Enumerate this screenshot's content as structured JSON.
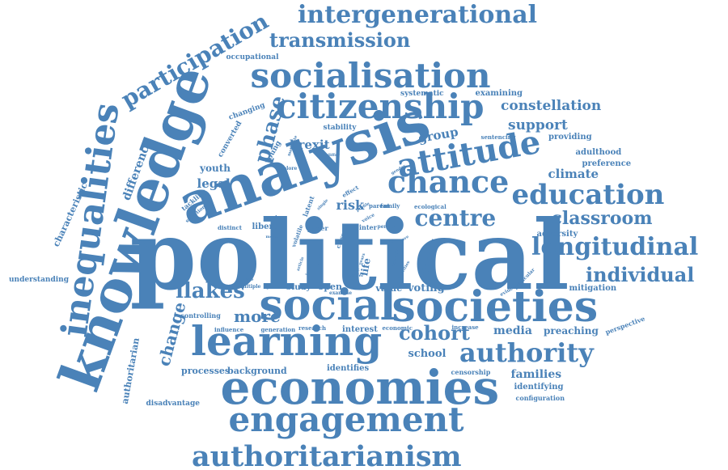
{
  "color": "#4a82b8",
  "words": [
    {
      "text": "political",
      "weight": 100
    },
    {
      "text": "analysis",
      "weight": 70
    },
    {
      "text": "knowledge",
      "weight": 62
    },
    {
      "text": "economies",
      "weight": 56
    },
    {
      "text": "social",
      "weight": 48
    },
    {
      "text": "societies",
      "weight": 48
    },
    {
      "text": "learning",
      "weight": 50
    },
    {
      "text": "inequalities",
      "weight": 45
    },
    {
      "text": "engagement",
      "weight": 42
    },
    {
      "text": "citizenship",
      "weight": 40
    },
    {
      "text": "socialisation",
      "weight": 40
    },
    {
      "text": "attitude",
      "weight": 37
    },
    {
      "text": "chance",
      "weight": 34
    },
    {
      "text": "education",
      "weight": 33
    },
    {
      "text": "authoritarianism",
      "weight": 33
    },
    {
      "text": "longitudinal",
      "weight": 30
    },
    {
      "text": "authority",
      "weight": 30
    },
    {
      "text": "intergenerational",
      "weight": 28
    },
    {
      "text": "participation",
      "weight": 26
    },
    {
      "text": "centre",
      "weight": 26
    },
    {
      "text": "phase",
      "weight": 25
    },
    {
      "text": "llakes",
      "weight": 25
    },
    {
      "text": "transmission",
      "weight": 24
    },
    {
      "text": "individual",
      "weight": 23
    },
    {
      "text": "cohort",
      "weight": 23
    },
    {
      "text": "classroom",
      "weight": 21
    },
    {
      "text": "change",
      "weight": 20
    },
    {
      "text": "more",
      "weight": 20
    },
    {
      "text": "constellation",
      "weight": 16
    },
    {
      "text": "support",
      "weight": 16
    },
    {
      "text": "difference",
      "weight": 14
    },
    {
      "text": "brexit",
      "weight": 14
    },
    {
      "text": "group",
      "weight": 14
    },
    {
      "text": "legal",
      "weight": 14
    },
    {
      "text": "risk",
      "weight": 14
    },
    {
      "text": "climate",
      "weight": 14
    },
    {
      "text": "school",
      "weight": 13
    },
    {
      "text": "families",
      "weight": 13
    },
    {
      "text": "media",
      "weight": 13
    },
    {
      "text": "preaching",
      "weight": 12
    },
    {
      "text": "voting",
      "weight": 12
    },
    {
      "text": "youth",
      "weight": 11
    },
    {
      "text": "characteristic",
      "weight": 11
    },
    {
      "text": "authoritarian",
      "weight": 10
    },
    {
      "text": "processes",
      "weight": 11
    },
    {
      "text": "background",
      "weight": 11
    },
    {
      "text": "identifies",
      "weight": 10
    },
    {
      "text": "identifying",
      "weight": 10
    },
    {
      "text": "examining",
      "weight": 10
    },
    {
      "text": "adulthood",
      "weight": 10
    },
    {
      "text": "preference",
      "weight": 10
    },
    {
      "text": "providing",
      "weight": 10
    },
    {
      "text": "adversity",
      "weight": 10
    },
    {
      "text": "mitigation",
      "weight": 10
    },
    {
      "text": "open",
      "weight": 10
    },
    {
      "text": "value",
      "weight": 10
    },
    {
      "text": "liberal",
      "weight": 10
    },
    {
      "text": "study",
      "weight": 10
    },
    {
      "text": "interest",
      "weight": 10
    },
    {
      "text": "factor",
      "weight": 10
    },
    {
      "text": "life",
      "weight": 10
    },
    {
      "text": "changing",
      "weight": 9
    },
    {
      "text": "converted",
      "weight": 9
    },
    {
      "text": "young",
      "weight": 9
    },
    {
      "text": "systematic",
      "weight": 9
    },
    {
      "text": "stability",
      "weight": 9
    },
    {
      "text": "occupational",
      "weight": 8
    },
    {
      "text": "understanding",
      "weight": 9
    },
    {
      "text": "disadvantage",
      "weight": 9
    },
    {
      "text": "configuration",
      "weight": 8
    },
    {
      "text": "censorship",
      "weight": 8
    },
    {
      "text": "perspective",
      "weight": 8
    },
    {
      "text": "controlling",
      "weight": 8
    },
    {
      "text": "influence",
      "weight": 7
    },
    {
      "text": "generation",
      "weight": 7
    },
    {
      "text": "research",
      "weight": 7
    },
    {
      "text": "economic",
      "weight": 7
    },
    {
      "text": "increase",
      "weight": 7
    },
    {
      "text": "tackling",
      "weight": 8
    },
    {
      "text": "sentencing",
      "weight": 7
    },
    {
      "text": "paper",
      "weight": 8
    },
    {
      "text": "inter",
      "weight": 8
    },
    {
      "text": "acc",
      "weight": 8
    },
    {
      "text": "parent",
      "weight": 7
    },
    {
      "text": "family",
      "weight": 7
    },
    {
      "text": "ecological",
      "weight": 7
    },
    {
      "text": "latent",
      "weight": 8
    },
    {
      "text": "volatile",
      "weight": 7
    },
    {
      "text": "class",
      "weight": 7
    },
    {
      "text": "effect",
      "weight": 7
    },
    {
      "text": "distinct",
      "weight": 7
    },
    {
      "text": "psycho",
      "weight": 6
    },
    {
      "text": "model",
      "weight": 5
    },
    {
      "text": "selection",
      "weight": 6
    },
    {
      "text": "multiple",
      "weight": 6
    },
    {
      "text": "politic",
      "weight": 6
    },
    {
      "text": "analyse",
      "weight": 5
    },
    {
      "text": "examine",
      "weight": 6
    },
    {
      "text": "person",
      "weight": 6
    },
    {
      "text": "voice",
      "weight": 6
    },
    {
      "text": "profile",
      "weight": 5
    },
    {
      "text": "single",
      "weight": 5
    },
    {
      "text": "explore",
      "weight": 6
    },
    {
      "text": "gender",
      "weight": 5
    },
    {
      "text": "moderate",
      "weight": 5
    },
    {
      "text": "evidence",
      "weight": 6
    },
    {
      "text": "particular",
      "weight": 6
    },
    {
      "text": "leave",
      "weight": 5
    },
    {
      "text": "activities",
      "weight": 5
    },
    {
      "text": "volatility",
      "weight": 5
    },
    {
      "text": "adult",
      "weight": 6
    },
    {
      "text": "article",
      "weight": 5
    },
    {
      "text": "result",
      "weight": 5
    },
    {
      "text": "differ",
      "weight": 5
    },
    {
      "text": "level",
      "weight": 5
    },
    {
      "text": "stiffer",
      "weight": 5
    },
    {
      "text": "years",
      "weight": 5
    }
  ]
}
